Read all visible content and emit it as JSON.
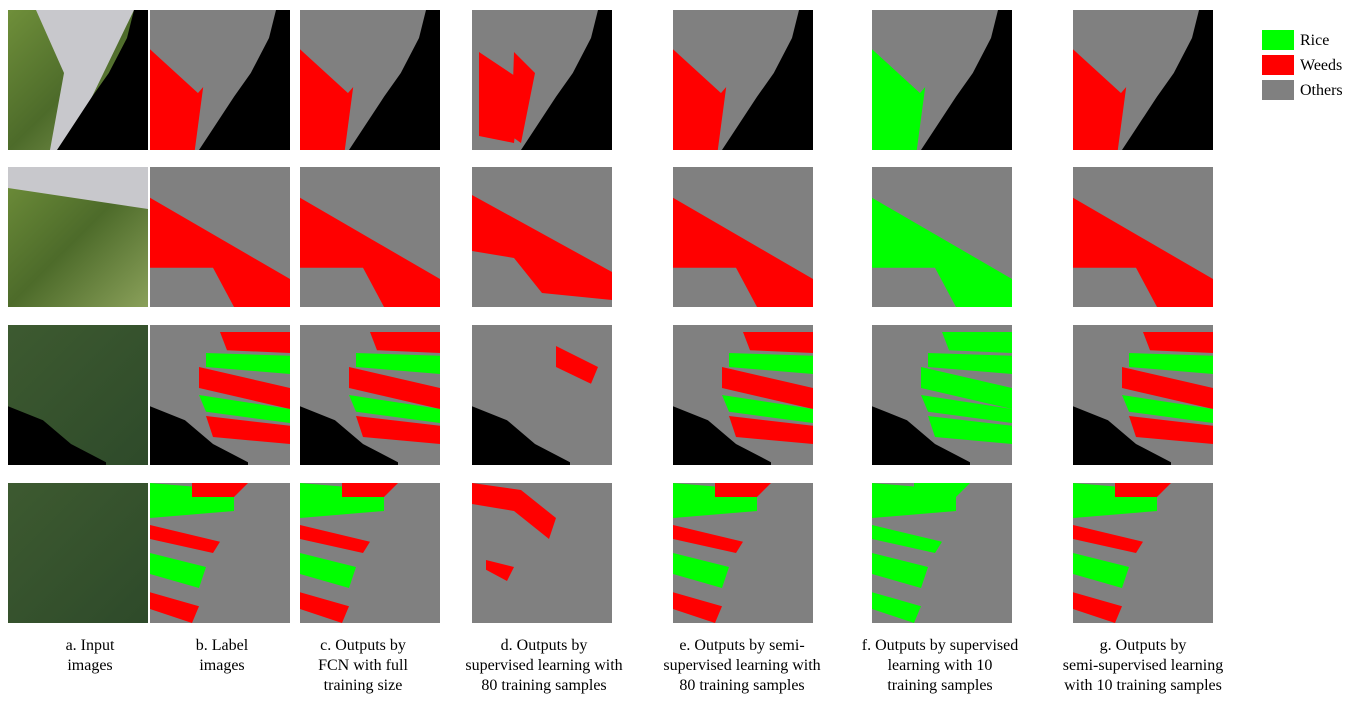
{
  "figure": {
    "legend": [
      {
        "name": "Rice",
        "color": "#00ff00"
      },
      {
        "name": "Weeds",
        "color": "#ff0000"
      },
      {
        "name": "Others",
        "color": "#808080"
      }
    ],
    "captions": [
      [
        "a. Input",
        "images"
      ],
      [
        "b. Label",
        "images"
      ],
      [
        "c. Outputs by",
        "FCN with full",
        "training size"
      ],
      [
        "d. Outputs by",
        "supervised learning with",
        "80 training samples"
      ],
      [
        "e. Outputs by semi-",
        "supervised learning with",
        "80 training samples"
      ],
      [
        "f. Outputs by supervised",
        "learning with 10",
        "training samples"
      ],
      [
        "g. Outputs by",
        "semi-supervised learning",
        "with 10 training samples"
      ]
    ]
  }
}
